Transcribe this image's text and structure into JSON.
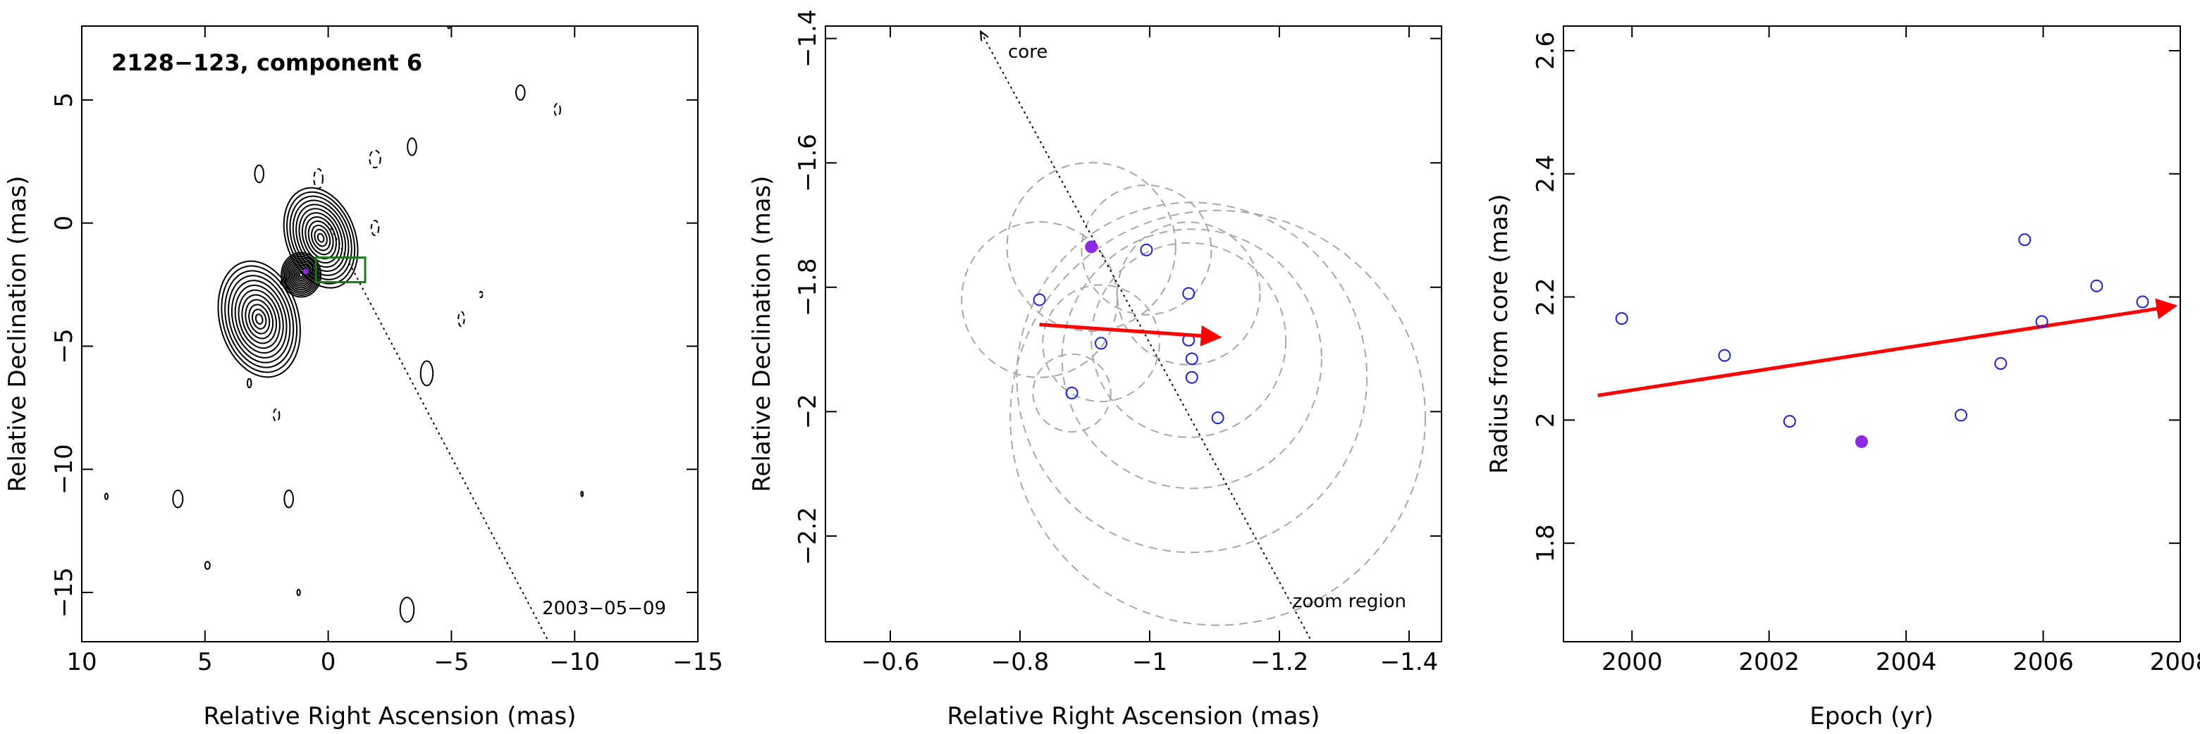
{
  "colors": {
    "frame": "#000000",
    "open_marker": "#1f1fe0",
    "filled_marker": "#8a2be2",
    "velocity_arrow": "#ff0000",
    "zoom_box": "#1a7a1a",
    "fit_circles": "#a8a8a8"
  },
  "panels": {
    "map": {
      "title": "2128−123, component 6",
      "epoch_label": "2003−05−09",
      "xlabel": "Relative Right Ascension (mas)",
      "ylabel": "Relative Declination (mas)"
    },
    "zoom": {
      "core_label": "core",
      "zoom_label": "zoom region",
      "xlabel": "Relative Right Ascension (mas)",
      "ylabel": "Relative Declination (mas)"
    },
    "radius": {
      "xlabel": "Epoch (yr)",
      "ylabel": "Radius from core (mas)"
    }
  },
  "chart_data": [
    {
      "type": "scatter",
      "name": "map",
      "title": "2128−123, component 6",
      "xlabel": "Relative Right Ascension (mas)",
      "ylabel": "Relative Declination (mas)",
      "xlim": [
        10,
        -15
      ],
      "ylim": [
        -17,
        8
      ],
      "xticks": [
        10,
        5,
        0,
        -5,
        -10,
        -15
      ],
      "xticklabels": [
        "10",
        "5",
        "0",
        "−5",
        "−10",
        "−15"
      ],
      "yticks": [
        5,
        0,
        -5,
        -10,
        -15
      ],
      "yticklabels": [
        "5",
        "0",
        "−5",
        "−10",
        "−15"
      ],
      "annotations": [
        "2003−05−09"
      ],
      "component_position": [
        0.91,
        -1.96
      ],
      "pa_line": {
        "from": [
          0,
          0
        ],
        "to": [
          -9,
          -17.1
        ]
      },
      "zoom_box": {
        "x": [
          0.5,
          -1.5
        ],
        "y": [
          -1.4,
          -2.4
        ]
      },
      "jet_blobs": [
        {
          "x": 0.3,
          "y": -0.6,
          "rx": 1.4,
          "ry": 2.1,
          "rot": -20
        },
        {
          "x": 2.8,
          "y": -3.9,
          "rx": 1.6,
          "ry": 2.4,
          "rot": -15
        },
        {
          "x": 1.1,
          "y": -2.1,
          "rx": 0.8,
          "ry": 0.9,
          "rot": 0
        }
      ],
      "contour_levels": 12
    },
    {
      "type": "scatter",
      "name": "zoom",
      "xlabel": "Relative Right Ascension (mas)",
      "ylabel": "Relative Declination (mas)",
      "xlim": [
        -0.5,
        -1.45
      ],
      "ylim": [
        -2.37,
        -1.38
      ],
      "xticks": [
        -0.6,
        -0.8,
        -1.0,
        -1.2,
        -1.4
      ],
      "xticklabels": [
        "−0.6",
        "−0.8",
        "−1",
        "−1.2",
        "−1.4"
      ],
      "yticks": [
        -1.4,
        -1.6,
        -1.8,
        -2.0,
        -2.2
      ],
      "yticklabels": [
        "−1.4",
        "−1.6",
        "−1.8",
        "−2",
        "−2.2"
      ],
      "series": [
        {
          "marker": "open",
          "points": [
            [
              -0.83,
              -1.82
            ],
            [
              -0.995,
              -1.74
            ],
            [
              -1.06,
              -1.81
            ],
            [
              -0.925,
              -1.89
            ],
            [
              -1.06,
              -1.885
            ],
            [
              -1.065,
              -1.915
            ],
            [
              -1.065,
              -1.945
            ],
            [
              -0.88,
              -1.97
            ],
            [
              -1.105,
              -2.01
            ]
          ]
        },
        {
          "marker": "filled",
          "points": [
            [
              -0.91,
              -1.735
            ]
          ]
        }
      ],
      "fit_circles": [
        {
          "x": -0.83,
          "y": -1.82,
          "r": 0.12
        },
        {
          "x": -0.995,
          "y": -1.74,
          "r": 0.1
        },
        {
          "x": -1.06,
          "y": -1.81,
          "r": 0.11
        },
        {
          "x": -0.925,
          "y": -1.89,
          "r": 0.09
        },
        {
          "x": -1.06,
          "y": -1.885,
          "r": 0.15
        },
        {
          "x": -1.065,
          "y": -1.915,
          "r": 0.2
        },
        {
          "x": -1.065,
          "y": -1.945,
          "r": 0.27
        },
        {
          "x": -0.88,
          "y": -1.97,
          "r": 0.06
        },
        {
          "x": -1.105,
          "y": -2.01,
          "r": 0.32
        },
        {
          "x": -0.91,
          "y": -1.735,
          "r": 0.13
        }
      ],
      "velocity_arrow": {
        "from": [
          -0.83,
          -1.86
        ],
        "to": [
          -1.105,
          -1.88
        ]
      },
      "pa_line": {
        "from": [
          -0.74,
          -1.39
        ],
        "to": [
          -1.25,
          -2.37
        ]
      },
      "annotations": [
        "core",
        "zoom region"
      ]
    },
    {
      "type": "scatter",
      "name": "radius",
      "xlabel": "Epoch (yr)",
      "ylabel": "Radius from core (mas)",
      "xlim": [
        1999,
        2008
      ],
      "ylim": [
        1.64,
        2.64
      ],
      "xticks": [
        2000,
        2002,
        2004,
        2006,
        2008
      ],
      "xticklabels": [
        "2000",
        "2002",
        "2004",
        "2006",
        "2008"
      ],
      "yticks": [
        1.8,
        2.0,
        2.2,
        2.4,
        2.6
      ],
      "yticklabels": [
        "1.8",
        "2",
        "2.2",
        "2.4",
        "2.6"
      ],
      "series": [
        {
          "marker": "open",
          "x": [
            1999.85,
            2001.35,
            2002.3,
            2004.8,
            2005.38,
            2005.73,
            2005.98,
            2006.78,
            2007.45
          ],
          "y": [
            2.165,
            2.105,
            1.998,
            2.008,
            2.092,
            2.293,
            2.16,
            2.218,
            2.192
          ]
        },
        {
          "marker": "filled",
          "x": [
            2003.35
          ],
          "y": [
            1.965
          ]
        }
      ],
      "velocity_arrow": {
        "from": [
          1999.5,
          2.04
        ],
        "to": [
          2007.9,
          2.185
        ]
      }
    }
  ]
}
